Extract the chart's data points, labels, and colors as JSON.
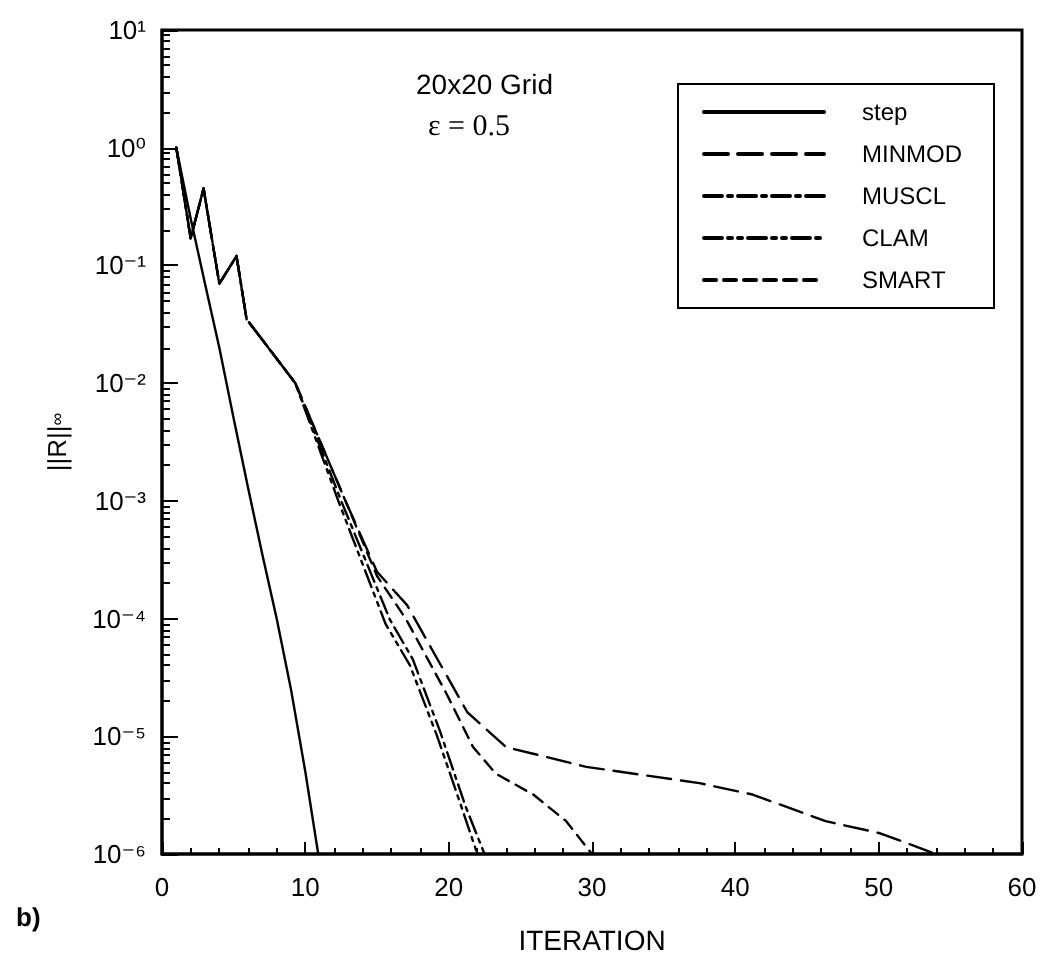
{
  "chart_data": {
    "type": "line",
    "xlabel": "ITERATION",
    "ylabel": "||R||$_{∞}$",
    "log": "y",
    "grid": false,
    "legend": "top right",
    "marker": "none",
    "xlim": [
      0,
      60
    ],
    "xticks": [
      0,
      10,
      20,
      30,
      40,
      50,
      60
    ],
    "ylim": [
      1e-06,
      10
    ],
    "yticks": [
      {
        "value": 1e-06,
        "label": "10⁻⁶"
      },
      {
        "value": 1e-05,
        "label": "10⁻⁵"
      },
      {
        "value": 0.0001,
        "label": "10⁻⁴"
      },
      {
        "value": 0.001,
        "label": "10⁻³"
      },
      {
        "value": 0.01,
        "label": "10⁻²"
      },
      {
        "value": 0.1,
        "label": "10⁻¹"
      },
      {
        "value": 1,
        "label": "10⁰"
      },
      {
        "value": 10,
        "label": "10¹"
      }
    ],
    "annotations": [
      "20x20 Grid",
      "ε = 0.5",
      "b)"
    ],
    "series": [
      {
        "name": "step",
        "color": "#000000",
        "line_style": "solid",
        "x": [
          1,
          2,
          3,
          4,
          5,
          6,
          7,
          8,
          9,
          10,
          10.9
        ],
        "values": [
          1,
          0.25,
          0.07,
          0.02,
          0.005,
          0.0013,
          0.00035,
          0.0001,
          2.5e-05,
          5e-06,
          1e-06
        ]
      },
      {
        "name": "MINMOD",
        "color": "#000000",
        "line_style": "longdash",
        "x": [
          1,
          2,
          2.9,
          4,
          5.2,
          5.9,
          9.3,
          12.8,
          15,
          17.1,
          21.3,
          24,
          29.6,
          37.5,
          41.2,
          46.3,
          50.1,
          54
        ],
        "values": [
          1,
          0.17,
          0.45,
          0.07,
          0.12,
          0.035,
          0.01,
          0.001,
          0.00025,
          0.00013,
          1.6e-05,
          8.1e-06,
          5.5e-06,
          4e-06,
          3.2e-06,
          1.9e-06,
          1.5e-06,
          1e-06
        ]
      },
      {
        "name": "MUSCL",
        "color": "#000000",
        "line_style": "dashdot",
        "x": [
          1,
          2,
          2.9,
          4,
          5.2,
          5.9,
          9.3,
          12.5,
          15.9,
          17.5,
          19.4,
          21.2,
          22.5
        ],
        "values": [
          1,
          0.17,
          0.45,
          0.07,
          0.12,
          0.035,
          0.01,
          0.001,
          9.8e-05,
          4.5e-05,
          1.1e-05,
          2.5e-06,
          1e-06
        ]
      },
      {
        "name": "CLAM",
        "color": "#000000",
        "line_style": "dashdotdot",
        "x": [
          1,
          2,
          2.9,
          4,
          5.2,
          5.9,
          9.3,
          12.3,
          15.6,
          17.3,
          19.2,
          21,
          22
        ],
        "values": [
          1,
          0.17,
          0.45,
          0.07,
          0.12,
          0.035,
          0.01,
          0.001,
          9e-05,
          4e-05,
          1e-05,
          2.3e-06,
          1e-06
        ]
      },
      {
        "name": "SMART",
        "color": "#000000",
        "line_style": "dashed",
        "x": [
          1,
          2,
          2.9,
          4,
          5.2,
          5.9,
          9.3,
          12.8,
          15,
          17,
          19.85,
          21.7,
          23.3,
          25.9,
          28.2,
          30
        ],
        "values": [
          1,
          0.17,
          0.45,
          0.07,
          0.12,
          0.035,
          0.01,
          0.001,
          0.00023,
          0.0001,
          2.3e-05,
          8.1e-06,
          4.8e-06,
          3.2e-06,
          1.9e-06,
          1e-06
        ]
      }
    ]
  }
}
